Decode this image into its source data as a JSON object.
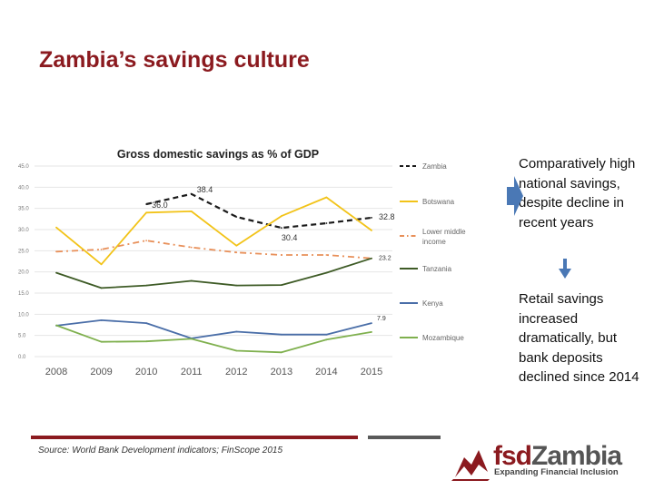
{
  "slide": {
    "title": "Zambia’s savings culture",
    "source": "Source: World Bank Development indicators; FinScope 2015"
  },
  "notes": [
    "Comparatively high national savings, despite decline in recent years",
    "Retail savings increased dramatically, but bank deposits declined since 2014"
  ],
  "logo": {
    "fsd": "fsd",
    "zambia": "Zambia",
    "tagline": "Expanding Financial Inclusion"
  },
  "colors": {
    "title": "#8b1a1f",
    "zambia": "#1a1a1a",
    "botswana": "#f2c318",
    "lower_middle_income": "#e8905a",
    "tanzania": "#3e5b26",
    "kenya": "#4a6ea8",
    "mozambique": "#7fb04e",
    "arrow": "#4a78b5"
  },
  "chart_data": {
    "type": "line",
    "title": "Gross domestic savings as % of GDP",
    "xlabel": "",
    "ylabel": "",
    "x": [
      "2008",
      "2009",
      "2010",
      "2011",
      "2012",
      "2013",
      "2014",
      "2015"
    ],
    "ylim": [
      0,
      45
    ],
    "yticks": [
      "0.0",
      "5.0",
      "10.0",
      "15.0",
      "20.0",
      "25.0",
      "30.0",
      "35.0",
      "40.0",
      "45.0"
    ],
    "grid": true,
    "legend_position": "right",
    "series": [
      {
        "name": "Zambia",
        "style": "dashed",
        "values": [
          null,
          null,
          36.0,
          38.4,
          33.0,
          30.4,
          31.5,
          32.8
        ]
      },
      {
        "name": "Botswana",
        "style": "solid",
        "values": [
          30.5,
          21.8,
          34.0,
          34.3,
          26.2,
          33.2,
          37.6,
          29.8
        ]
      },
      {
        "name": "Lower middle income",
        "style": "dashdot",
        "values": [
          24.8,
          25.3,
          27.4,
          25.8,
          24.6,
          24.0,
          24.0,
          23.2
        ]
      },
      {
        "name": "Tanzania",
        "style": "solid",
        "values": [
          19.8,
          16.2,
          16.8,
          17.9,
          16.8,
          16.9,
          19.8,
          23.2
        ]
      },
      {
        "name": "Kenya",
        "style": "solid",
        "values": [
          7.3,
          8.6,
          7.9,
          4.3,
          5.9,
          5.2,
          5.2,
          7.9
        ]
      },
      {
        "name": "Mozambique",
        "style": "solid",
        "values": [
          7.4,
          3.5,
          3.6,
          4.2,
          1.4,
          1.0,
          4.0,
          5.8
        ]
      }
    ],
    "data_labels": [
      {
        "series": "Zambia",
        "x": "2010",
        "text": "36.0"
      },
      {
        "series": "Zambia",
        "x": "2011",
        "text": "38.4"
      },
      {
        "series": "Zambia",
        "x": "2013",
        "text": "30.4"
      },
      {
        "series": "Zambia",
        "x": "2015",
        "text": "32.8"
      },
      {
        "series": "Lower middle income",
        "x": "2015",
        "text": "23.2"
      },
      {
        "series": "Kenya",
        "x": "2015",
        "text": "7.9"
      }
    ]
  }
}
